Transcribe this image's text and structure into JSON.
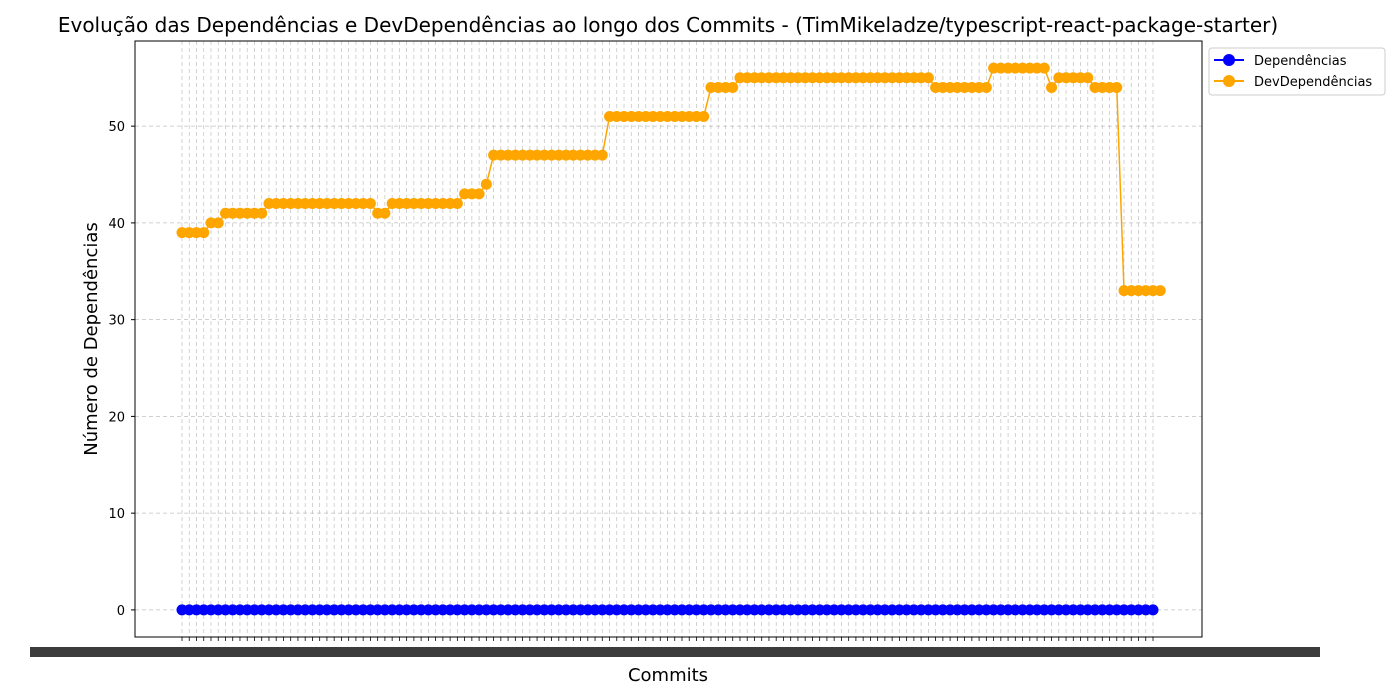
{
  "colors": {
    "dependencies": "#0000ff",
    "devdependencies": "#ffa500",
    "grid": "#b0b0b0",
    "axis": "#000000"
  },
  "chart_data": {
    "type": "line",
    "title": "Evolução das Dependências e DevDependências ao longo dos Commits - (TimMikeladze/typescript-react-package-starter)",
    "xlabel": "Commits",
    "ylabel": "Número de Dependências",
    "ylim": [
      -2.8,
      58.8
    ],
    "yticks": [
      0,
      10,
      20,
      30,
      40,
      50
    ],
    "grid": true,
    "legend_position": "outside top-right",
    "commit_count": 135,
    "x_tick_labels_note": "tick labels are commit hashes, overlapping and unreadable",
    "series": [
      {
        "name": "Dependências",
        "color": "#0000ff",
        "values": [
          0,
          0,
          0,
          0,
          0,
          0,
          0,
          0,
          0,
          0,
          0,
          0,
          0,
          0,
          0,
          0,
          0,
          0,
          0,
          0,
          0,
          0,
          0,
          0,
          0,
          0,
          0,
          0,
          0,
          0,
          0,
          0,
          0,
          0,
          0,
          0,
          0,
          0,
          0,
          0,
          0,
          0,
          0,
          0,
          0,
          0,
          0,
          0,
          0,
          0,
          0,
          0,
          0,
          0,
          0,
          0,
          0,
          0,
          0,
          0,
          0,
          0,
          0,
          0,
          0,
          0,
          0,
          0,
          0,
          0,
          0,
          0,
          0,
          0,
          0,
          0,
          0,
          0,
          0,
          0,
          0,
          0,
          0,
          0,
          0,
          0,
          0,
          0,
          0,
          0,
          0,
          0,
          0,
          0,
          0,
          0,
          0,
          0,
          0,
          0,
          0,
          0,
          0,
          0,
          0,
          0,
          0,
          0,
          0,
          0,
          0,
          0,
          0,
          0,
          0,
          0,
          0,
          0,
          0,
          0,
          0,
          0,
          0,
          0,
          0,
          0,
          0,
          0,
          0,
          0,
          0,
          0,
          0,
          0,
          0
        ]
      },
      {
        "name": "DevDependências",
        "color": "#ffa500",
        "values": [
          39,
          39,
          39,
          39,
          40,
          40,
          41,
          41,
          41,
          41,
          41,
          41,
          42,
          42,
          42,
          42,
          42,
          42,
          42,
          42,
          42,
          42,
          42,
          42,
          42,
          42,
          42,
          41,
          41,
          42,
          42,
          42,
          42,
          42,
          42,
          42,
          42,
          42,
          42,
          43,
          43,
          43,
          44,
          47,
          47,
          47,
          47,
          47,
          47,
          47,
          47,
          47,
          47,
          47,
          47,
          47,
          47,
          47,
          47,
          51,
          51,
          51,
          51,
          51,
          51,
          51,
          51,
          51,
          51,
          51,
          51,
          51,
          51,
          54,
          54,
          54,
          54,
          55,
          55,
          55,
          55,
          55,
          55,
          55,
          55,
          55,
          55,
          55,
          55,
          55,
          55,
          55,
          55,
          55,
          55,
          55,
          55,
          55,
          55,
          55,
          55,
          55,
          55,
          55,
          54,
          54,
          54,
          54,
          54,
          54,
          54,
          54,
          56,
          56,
          56,
          56,
          56,
          56,
          56,
          56,
          54,
          55,
          55,
          55,
          55,
          55,
          54,
          54,
          54,
          54,
          33,
          33,
          33,
          33,
          33,
          33
        ]
      }
    ]
  }
}
